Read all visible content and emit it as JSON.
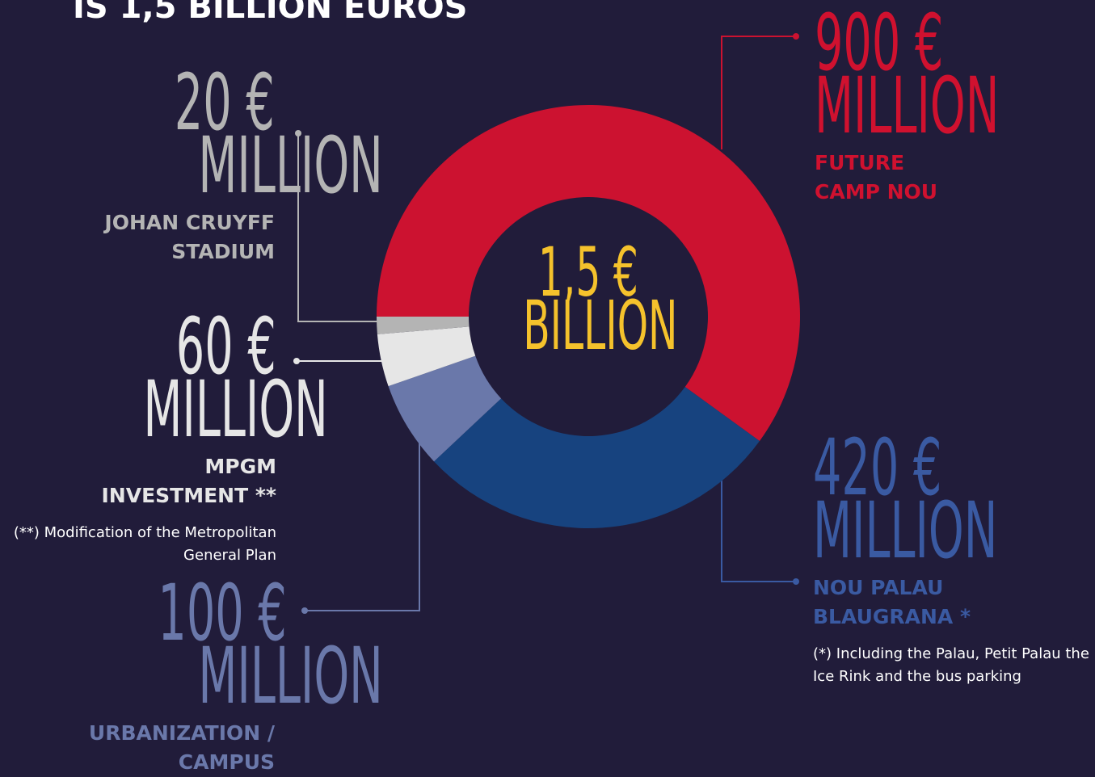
{
  "chart_data": {
    "type": "pie",
    "donut": true,
    "title": "IS 1,5 BILLION EUROS",
    "total_label": "1,5 €",
    "total_unit": "BILLION",
    "unit": "MILLION",
    "categories": [
      "FUTURE CAMP NOU",
      "NOU PALAU BLAUGRANA *",
      "URBANIZATION / CAMPUS",
      "MPGM INVESTMENT **",
      "JOHAN CRUYFF STADIUM"
    ],
    "values": [
      900,
      420,
      100,
      60,
      20
    ],
    "value_labels": [
      "900 €",
      "420 €",
      "100 €",
      "60 €",
      "20 €"
    ],
    "colors": [
      "#cc1230",
      "#17437f",
      "#6a78aa",
      "#e6e6e6",
      "#b4b4b4"
    ],
    "label_colors": [
      "#d0112f",
      "#3a5aa2",
      "#6a78aa",
      "#e6e6e6",
      "#b4b4b4"
    ],
    "notes": [
      null,
      "(*) Including the Palau, Petit Palau the Ice Rink and the bus parking",
      null,
      "(**) Modification of the Metropolitan General Plan",
      null
    ]
  }
}
